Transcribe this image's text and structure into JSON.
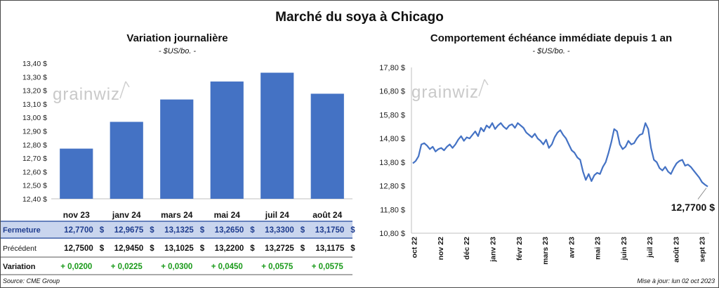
{
  "title": "Marché du soya à Chicago",
  "source": "Source: CME Group",
  "updated": "Mise à jour: lun 02 oct 2023",
  "watermark": "grainwiz",
  "colors": {
    "bar": "#4472c4",
    "line": "#4472c4",
    "positive": "#1a9a1a",
    "highlight_row": "#c9d5ee"
  },
  "chart_data": [
    {
      "type": "bar",
      "title": "Variation journalière",
      "subtitle": "- $US/bo. -",
      "categories": [
        "nov 23",
        "janv 24",
        "mars 24",
        "mai 24",
        "juil 24",
        "août 24"
      ],
      "values": [
        12.77,
        12.9675,
        13.1325,
        13.265,
        13.33,
        13.175
      ],
      "ylim": [
        12.4,
        13.4
      ],
      "yticks": [
        "12,40 $",
        "12,50 $",
        "12,60 $",
        "12,70 $",
        "12,80 $",
        "12,90 $",
        "13,00 $",
        "13,10 $",
        "13,20 $",
        "13,30 $",
        "13,40 $"
      ],
      "grid": false,
      "table": {
        "rows": [
          {
            "label": "Fermeture",
            "values": [
              "12,7700",
              "12,9675",
              "13,1325",
              "13,2650",
              "13,3300",
              "13,1750"
            ],
            "suffix": "$"
          },
          {
            "label": "Précédent",
            "values": [
              "12,7500",
              "12,9450",
              "13,1025",
              "13,2200",
              "13,2725",
              "13,1175"
            ],
            "suffix": "$"
          },
          {
            "label": "Variation",
            "values": [
              "+ 0,0200",
              "+ 0,0225",
              "+ 0,0300",
              "+ 0,0450",
              "+ 0,0575",
              "+ 0,0575"
            ]
          }
        ]
      }
    },
    {
      "type": "line",
      "title": "Comportement  échéance immédiate depuis 1 an",
      "subtitle": "- $US/bo. -",
      "ylim": [
        10.8,
        17.8
      ],
      "yticks": [
        "10,80 $",
        "11,80 $",
        "12,80 $",
        "13,80 $",
        "14,80 $",
        "15,80 $",
        "16,80 $",
        "17,80 $"
      ],
      "xticks": [
        "oct 22",
        "nov 22",
        "déc 22",
        "janv 23",
        "févr 23",
        "mars 23",
        "avr 23",
        "mai 23",
        "juin 23",
        "juil 23",
        "août 23",
        "sept 23"
      ],
      "last_value_label": "12,7700 $",
      "grid": false,
      "series": [
        {
          "values": [
            13.75,
            13.85,
            14.05,
            14.55,
            14.6,
            14.5,
            14.35,
            14.45,
            14.25,
            14.35,
            14.4,
            14.3,
            14.45,
            14.55,
            14.4,
            14.55,
            14.75,
            14.9,
            14.7,
            14.85,
            14.8,
            14.95,
            15.1,
            14.9,
            15.25,
            15.1,
            15.35,
            15.25,
            15.45,
            15.2,
            15.35,
            15.45,
            15.3,
            15.2,
            15.35,
            15.4,
            15.25,
            15.45,
            15.35,
            15.25,
            15.05,
            14.95,
            14.85,
            15.0,
            14.8,
            14.7,
            14.55,
            14.75,
            14.4,
            14.55,
            14.85,
            15.05,
            15.15,
            14.95,
            14.8,
            14.55,
            14.3,
            14.2,
            14.0,
            13.9,
            13.4,
            13.05,
            13.3,
            13.0,
            13.25,
            13.35,
            13.3,
            13.6,
            13.8,
            14.2,
            14.65,
            15.2,
            15.1,
            14.55,
            14.35,
            14.45,
            14.7,
            14.55,
            14.6,
            14.8,
            14.95,
            15.0,
            15.45,
            15.2,
            14.4,
            13.9,
            13.8,
            13.55,
            13.45,
            13.6,
            13.4,
            13.3,
            13.55,
            13.75,
            13.85,
            13.9,
            13.65,
            13.7,
            13.6,
            13.45,
            13.3,
            13.15,
            12.95,
            12.85,
            12.77
          ]
        }
      ]
    }
  ]
}
